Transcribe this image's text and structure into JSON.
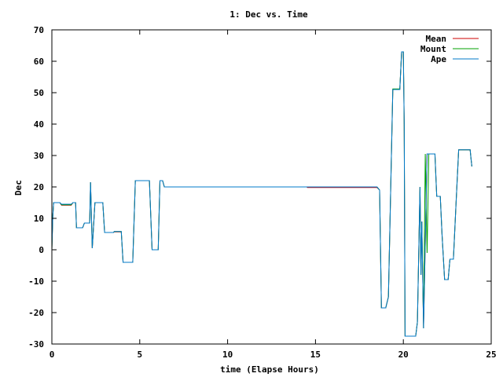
{
  "chart_data": {
    "type": "line",
    "title": "1: Dec vs. Time",
    "xlabel": "time (Elapse Hours)",
    "ylabel": "Dec",
    "xlim": [
      0,
      25
    ],
    "ylim": [
      -30,
      70
    ],
    "xticks": [
      0,
      5,
      10,
      15,
      20,
      25
    ],
    "yticks": [
      -30,
      -20,
      -10,
      0,
      10,
      20,
      30,
      40,
      50,
      60,
      70
    ],
    "grid": false,
    "legend_position": "top-right",
    "series": [
      {
        "name": "Mean",
        "color": "#cc0000",
        "points": [
          [
            0.0,
            0.2
          ],
          [
            0.05,
            10.2
          ],
          [
            0.1,
            15.0
          ],
          [
            0.45,
            15.0
          ],
          [
            0.55,
            14.2
          ],
          [
            1.1,
            14.2
          ],
          [
            1.2,
            15.0
          ],
          [
            1.35,
            15.0
          ],
          [
            1.4,
            7.0
          ],
          [
            1.75,
            7.0
          ],
          [
            1.85,
            8.5
          ],
          [
            2.15,
            8.5
          ],
          [
            2.2,
            21.5
          ],
          [
            2.3,
            0.5
          ],
          [
            2.45,
            15.0
          ],
          [
            2.55,
            15.0
          ],
          [
            2.9,
            15.0
          ],
          [
            3.0,
            5.5
          ],
          [
            3.5,
            5.5
          ],
          [
            3.55,
            5.7
          ],
          [
            3.95,
            5.7
          ],
          [
            4.05,
            -4.0
          ],
          [
            4.6,
            -4.0
          ],
          [
            4.75,
            22.0
          ],
          [
            5.55,
            22.0
          ],
          [
            5.7,
            0.0
          ],
          [
            6.05,
            0.0
          ],
          [
            6.15,
            22.0
          ],
          [
            6.3,
            22.0
          ],
          [
            6.4,
            20.0
          ],
          [
            14.5,
            20.0
          ],
          [
            14.55,
            19.8
          ],
          [
            18.5,
            19.8
          ],
          [
            18.65,
            19.0
          ],
          [
            18.75,
            -18.5
          ],
          [
            19.0,
            -18.5
          ],
          [
            19.15,
            -15.0
          ],
          [
            19.4,
            51.0
          ],
          [
            19.8,
            51.0
          ],
          [
            19.9,
            63.0
          ],
          [
            20.0,
            63.0
          ],
          [
            20.05,
            40.0
          ],
          [
            20.1,
            -27.5
          ],
          [
            20.7,
            -27.5
          ],
          [
            20.8,
            -23.0
          ],
          [
            20.95,
            20.0
          ],
          [
            21.0,
            -8.0
          ],
          [
            21.05,
            9.0
          ],
          [
            21.15,
            -25.0
          ],
          [
            21.35,
            30.5
          ],
          [
            21.8,
            30.5
          ],
          [
            21.9,
            17.0
          ],
          [
            22.1,
            17.0
          ],
          [
            22.2,
            5.0
          ],
          [
            22.35,
            -9.5
          ],
          [
            22.55,
            -9.5
          ],
          [
            22.65,
            -3.0
          ],
          [
            22.85,
            -3.0
          ],
          [
            23.0,
            15.0
          ],
          [
            23.15,
            31.8
          ],
          [
            23.8,
            31.8
          ],
          [
            23.85,
            29.0
          ],
          [
            23.9,
            26.5
          ]
        ]
      },
      {
        "name": "Mount",
        "color": "#00a000",
        "points": [
          [
            0.0,
            0.2
          ],
          [
            0.05,
            10.2
          ],
          [
            0.1,
            15.0
          ],
          [
            0.45,
            15.0
          ],
          [
            0.55,
            14.3
          ],
          [
            1.1,
            14.3
          ],
          [
            1.2,
            15.0
          ],
          [
            1.35,
            15.0
          ],
          [
            1.4,
            7.0
          ],
          [
            1.75,
            7.0
          ],
          [
            1.85,
            8.5
          ],
          [
            2.15,
            8.5
          ],
          [
            2.2,
            21.5
          ],
          [
            2.3,
            0.5
          ],
          [
            2.45,
            15.0
          ],
          [
            2.55,
            15.0
          ],
          [
            2.9,
            15.0
          ],
          [
            3.0,
            5.5
          ],
          [
            3.5,
            5.5
          ],
          [
            3.55,
            5.8
          ],
          [
            3.95,
            5.8
          ],
          [
            4.05,
            -4.0
          ],
          [
            4.6,
            -4.0
          ],
          [
            4.75,
            22.0
          ],
          [
            5.55,
            22.0
          ],
          [
            5.7,
            0.0
          ],
          [
            6.05,
            0.0
          ],
          [
            6.15,
            22.0
          ],
          [
            6.3,
            22.0
          ],
          [
            6.4,
            20.0
          ],
          [
            18.5,
            20.0
          ],
          [
            18.65,
            19.0
          ],
          [
            18.75,
            -18.5
          ],
          [
            19.0,
            -18.5
          ],
          [
            19.15,
            -15.0
          ],
          [
            19.4,
            51.2
          ],
          [
            19.8,
            51.2
          ],
          [
            19.9,
            63.0
          ],
          [
            20.0,
            63.0
          ],
          [
            20.05,
            40.0
          ],
          [
            20.1,
            -27.5
          ],
          [
            20.7,
            -27.5
          ],
          [
            20.8,
            -23.0
          ],
          [
            20.95,
            20.0
          ],
          [
            21.0,
            -8.0
          ],
          [
            21.05,
            9.0
          ],
          [
            21.15,
            -25.0
          ],
          [
            21.25,
            30.5
          ],
          [
            21.35,
            -1.0
          ],
          [
            21.45,
            30.5
          ],
          [
            21.8,
            30.5
          ],
          [
            21.85,
            23.0
          ],
          [
            21.9,
            17.0
          ],
          [
            22.1,
            17.0
          ],
          [
            22.2,
            5.0
          ],
          [
            22.35,
            -9.5
          ],
          [
            22.55,
            -9.5
          ],
          [
            22.65,
            -3.0
          ],
          [
            22.85,
            -3.0
          ],
          [
            23.0,
            15.0
          ],
          [
            23.15,
            31.8
          ],
          [
            23.8,
            31.8
          ],
          [
            23.85,
            29.0
          ],
          [
            23.9,
            26.5
          ]
        ]
      },
      {
        "name": "Ape",
        "color": "#0078c8",
        "points": [
          [
            0.0,
            0.2
          ],
          [
            0.05,
            10.2
          ],
          [
            0.1,
            15.0
          ],
          [
            0.45,
            15.0
          ],
          [
            0.55,
            14.5
          ],
          [
            1.1,
            14.5
          ],
          [
            1.2,
            15.0
          ],
          [
            1.35,
            15.0
          ],
          [
            1.4,
            7.0
          ],
          [
            1.75,
            7.0
          ],
          [
            1.85,
            8.5
          ],
          [
            2.15,
            8.5
          ],
          [
            2.2,
            21.5
          ],
          [
            2.3,
            0.5
          ],
          [
            2.45,
            15.0
          ],
          [
            2.55,
            15.0
          ],
          [
            2.9,
            15.0
          ],
          [
            3.0,
            5.5
          ],
          [
            3.5,
            5.5
          ],
          [
            3.55,
            5.8
          ],
          [
            3.95,
            5.8
          ],
          [
            4.05,
            -4.0
          ],
          [
            4.6,
            -4.0
          ],
          [
            4.75,
            22.0
          ],
          [
            5.55,
            22.0
          ],
          [
            5.7,
            0.0
          ],
          [
            6.05,
            0.0
          ],
          [
            6.15,
            22.0
          ],
          [
            6.3,
            22.0
          ],
          [
            6.4,
            20.0
          ],
          [
            18.5,
            20.0
          ],
          [
            18.65,
            19.0
          ],
          [
            18.75,
            -18.5
          ],
          [
            19.0,
            -18.5
          ],
          [
            19.15,
            -15.0
          ],
          [
            19.4,
            51.0
          ],
          [
            19.8,
            51.0
          ],
          [
            19.9,
            63.0
          ],
          [
            20.0,
            63.0
          ],
          [
            20.05,
            40.0
          ],
          [
            20.1,
            -27.5
          ],
          [
            20.7,
            -27.5
          ],
          [
            20.8,
            -23.0
          ],
          [
            20.95,
            20.0
          ],
          [
            21.0,
            -8.0
          ],
          [
            21.05,
            9.0
          ],
          [
            21.15,
            -25.0
          ],
          [
            21.35,
            30.5
          ],
          [
            21.8,
            30.5
          ],
          [
            21.9,
            17.0
          ],
          [
            22.1,
            17.0
          ],
          [
            22.2,
            5.0
          ],
          [
            22.35,
            -9.5
          ],
          [
            22.55,
            -9.5
          ],
          [
            22.65,
            -3.0
          ],
          [
            22.85,
            -3.0
          ],
          [
            23.0,
            15.0
          ],
          [
            23.15,
            31.8
          ],
          [
            23.8,
            31.8
          ],
          [
            23.85,
            29.0
          ],
          [
            23.9,
            26.5
          ]
        ]
      }
    ]
  }
}
